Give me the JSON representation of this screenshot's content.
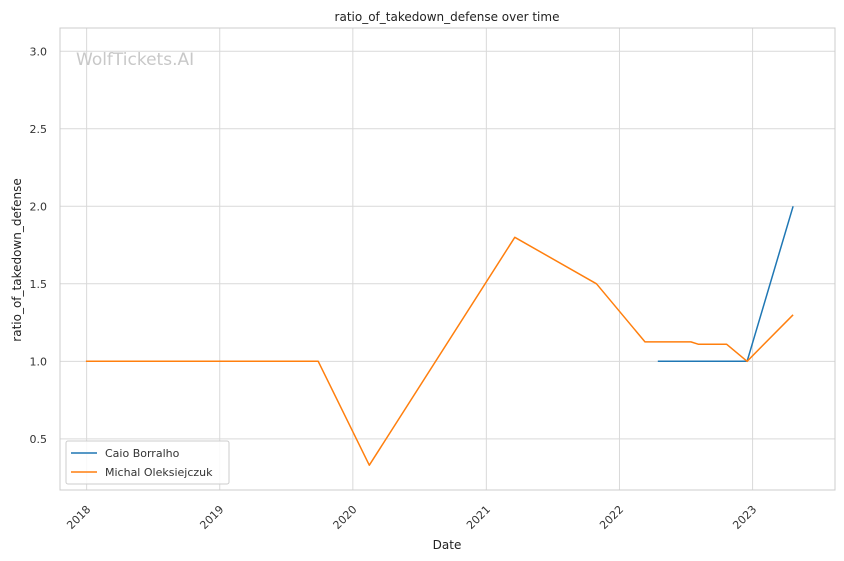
{
  "watermark": "WolfTickets.AI",
  "chart_data": {
    "type": "line",
    "title": "ratio_of_takedown_defense over time",
    "xlabel": "Date",
    "ylabel": "ratio_of_takedown_defense",
    "x_ticks": [
      "2018",
      "2019",
      "2020",
      "2021",
      "2022",
      "2023"
    ],
    "y_ticks": [
      "0.5",
      "1.0",
      "1.5",
      "2.0",
      "2.5",
      "3.0"
    ],
    "xlim": [
      "2017-10-20",
      "2023-08-15"
    ],
    "ylim": [
      0.17,
      3.15
    ],
    "grid": true,
    "legend_position": "lower-left",
    "series": [
      {
        "name": "Caio Borralho",
        "color": "#1f77b4",
        "points": [
          [
            "2022-04-16",
            1.0
          ],
          [
            "2022-12-17",
            1.0
          ],
          [
            "2023-04-22",
            2.0
          ]
        ]
      },
      {
        "name": "Michal Oleksiejczuk",
        "color": "#ff7f0e",
        "points": [
          [
            "2017-12-30",
            1.0
          ],
          [
            "2019-09-28",
            1.0
          ],
          [
            "2020-02-15",
            0.33
          ],
          [
            "2021-03-20",
            1.8
          ],
          [
            "2021-10-30",
            1.5
          ],
          [
            "2022-03-12",
            1.125
          ],
          [
            "2022-07-16",
            1.125
          ],
          [
            "2022-08-06",
            1.11
          ],
          [
            "2022-10-22",
            1.11
          ],
          [
            "2022-12-17",
            1.0
          ],
          [
            "2023-04-22",
            1.3
          ]
        ]
      }
    ]
  }
}
